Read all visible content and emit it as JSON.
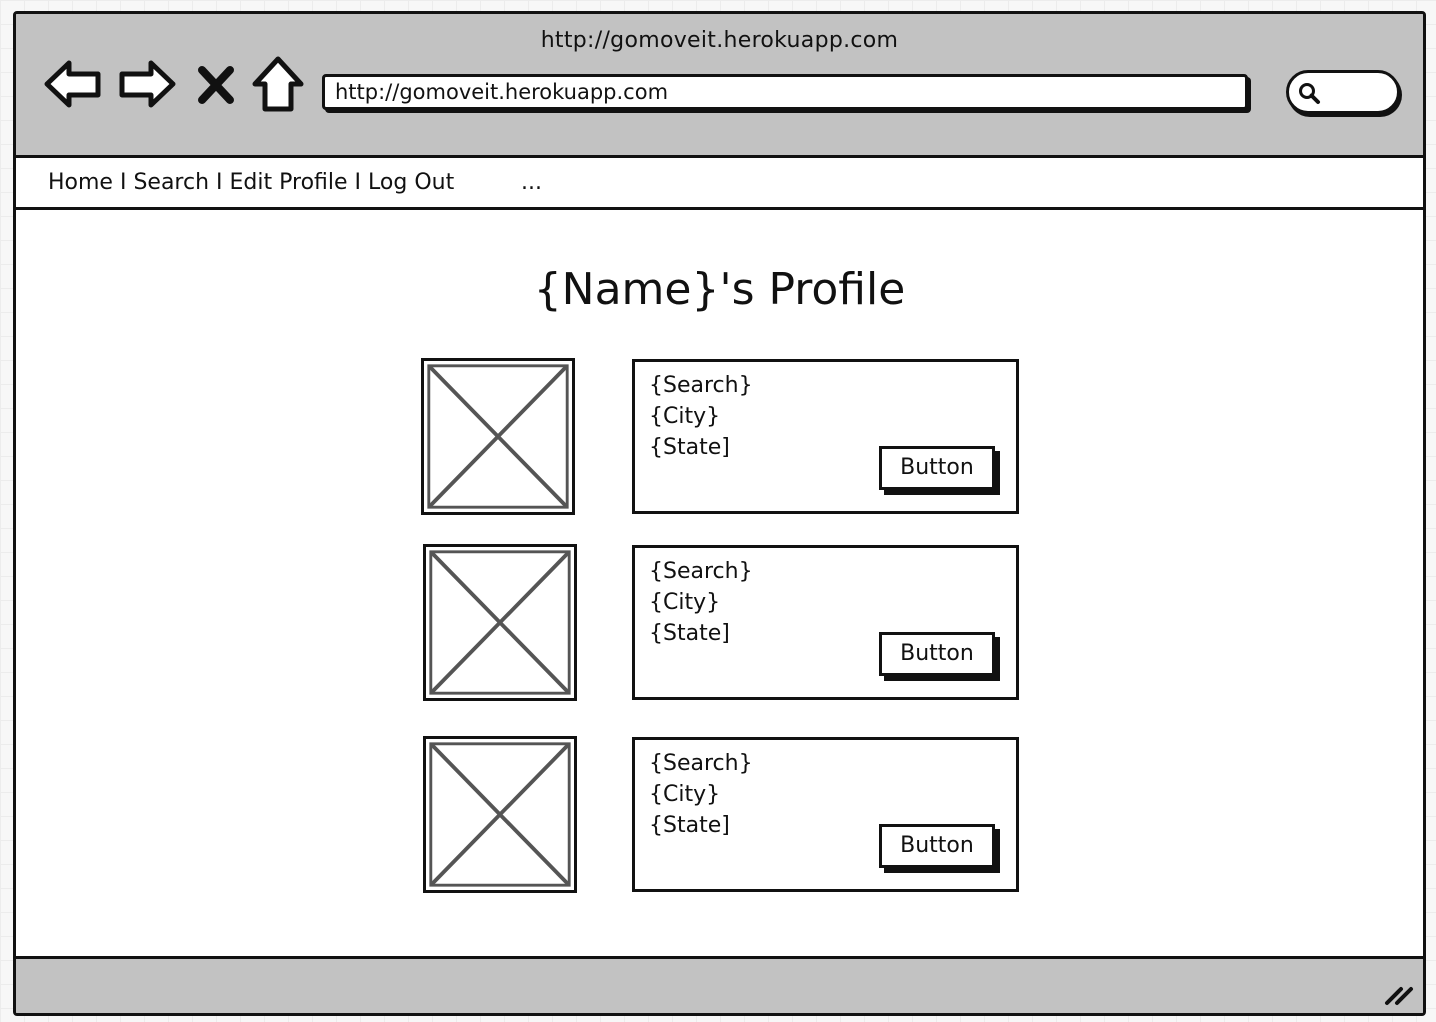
{
  "window": {
    "title": "http://gomoveit.herokuapp.com"
  },
  "toolbar": {
    "back_icon": "back-arrow-icon",
    "forward_icon": "forward-arrow-icon",
    "stop_icon": "close-icon",
    "home_icon": "home-icon",
    "address": "http://gomoveit.herokuapp.com",
    "search_icon": "search-icon"
  },
  "nav": {
    "items": [
      {
        "label": "Home"
      },
      {
        "label": "Search"
      },
      {
        "label": "Edit Profile"
      },
      {
        "label": "Log Out"
      }
    ],
    "separator": " I ",
    "more": "..."
  },
  "main": {
    "title": "{Name}'s Profile",
    "rows": [
      {
        "search": "{Search}",
        "city": "{City}",
        "state": "{State]",
        "button": "Button"
      },
      {
        "search": "{Search}",
        "city": "{City}",
        "state": "{State]",
        "button": "Button"
      },
      {
        "search": "{Search}",
        "city": "{City}",
        "state": "{State]",
        "button": "Button"
      }
    ]
  },
  "statusbar": {
    "grip_icon": "resize-grip-icon"
  },
  "colors": {
    "chrome": "#c2c2c2",
    "stroke": "#111111",
    "placeholder": "#555555"
  }
}
